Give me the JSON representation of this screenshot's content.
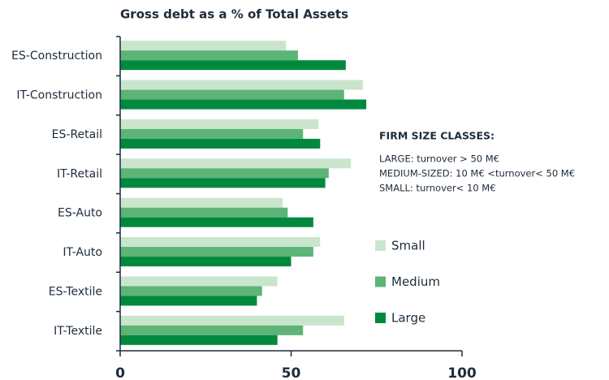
{
  "chart_data": {
    "type": "hbar",
    "title": "Gross debt as a % of Total Assets",
    "categories": [
      "ES-Construction",
      "IT-Construction",
      "ES-Retail",
      "IT-Retail",
      "ES-Auto",
      "IT-Auto",
      "ES-Textile",
      "IT-Textile"
    ],
    "series": [
      {
        "name": "Small",
        "color": "#c9e6cd",
        "values": [
          48.5,
          71,
          58,
          67.5,
          47.5,
          58.5,
          46,
          65.5
        ]
      },
      {
        "name": "Medium",
        "color": "#5cb476",
        "values": [
          52,
          65.5,
          53.5,
          61,
          49,
          56.5,
          41.5,
          53.5
        ]
      },
      {
        "name": "Large",
        "color": "#00893e",
        "values": [
          66,
          72,
          58.5,
          60,
          56.5,
          50,
          40,
          46
        ]
      }
    ],
    "xlim": [
      0,
      100
    ],
    "xticks": [
      0,
      50,
      100
    ],
    "annotations": [
      "FIRM SIZE CLASSES:",
      "LARGE: turnover > 50 M€",
      "MEDIUM-SIZED: 10 M€ <turnover< 50 M€",
      "SMALL: turnover< 10 M€"
    ]
  }
}
